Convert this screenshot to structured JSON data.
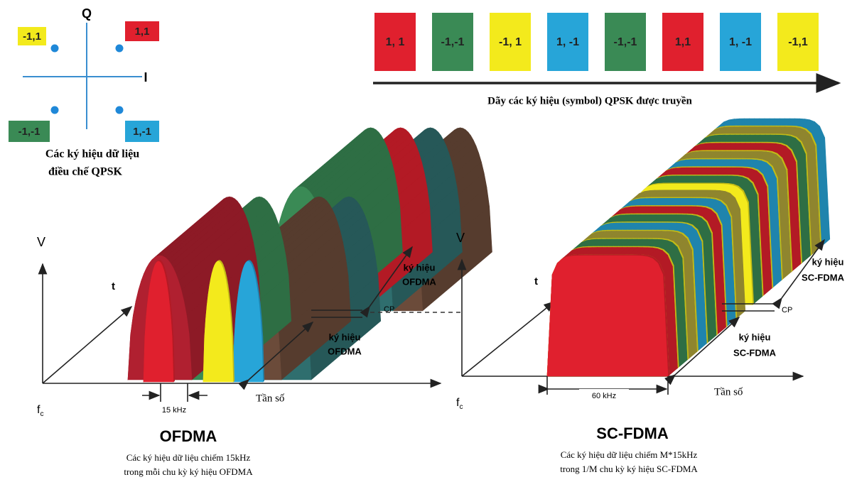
{
  "constellation": {
    "q_axis": "Q",
    "i_axis": "I",
    "points": [
      {
        "label": "-1,1",
        "color": "#f3ea1c"
      },
      {
        "label": "1,1",
        "color": "#e0202e"
      },
      {
        "label": "-1,-1",
        "color": "#3a8a55"
      },
      {
        "label": "1,-1",
        "color": "#27a5d8"
      }
    ],
    "caption": [
      "Các ký hiệu dữ liệu",
      "điều chế QPSK"
    ]
  },
  "sequence": {
    "symbols": [
      {
        "label": "1, 1",
        "color": "#e0202e"
      },
      {
        "label": "-1,-1",
        "color": "#3a8a55"
      },
      {
        "label": "-1, 1",
        "color": "#f3ea1c"
      },
      {
        "label": "1, -1",
        "color": "#27a5d8"
      },
      {
        "label": "-1,-1",
        "color": "#3a8a55"
      },
      {
        "label": "1,1",
        "color": "#e0202e"
      },
      {
        "label": "1, -1",
        "color": "#27a5d8"
      },
      {
        "label": "-1,1",
        "color": "#f3ea1c"
      }
    ],
    "caption": "Dãy các ký hiệu (symbol) QPSK được truyền"
  },
  "ofdma": {
    "v_axis": "V",
    "t_axis": "t",
    "f_axis": "f",
    "f_axis_sub": "c",
    "symbol_labels": [
      [
        "ký hiệu",
        "OFDMA"
      ],
      [
        "ký hiệu",
        "OFDMA"
      ]
    ],
    "cp": "CP",
    "freq_axis": "Tần số",
    "spacing": "15 kHz",
    "title": "OFDMA",
    "caption": [
      "Các ký hiệu dữ liệu chiếm 15kHz",
      "trong mỗi chu kỳ ký hiệu OFDMA"
    ]
  },
  "scfdma": {
    "v_axis": "V",
    "t_axis": "t",
    "f_axis": "f",
    "f_axis_sub": "c",
    "symbol_labels": [
      [
        "ký hiệu",
        "SC-FDMA"
      ],
      [
        "ký hiệu",
        "SC-FDMA"
      ]
    ],
    "cp": "CP",
    "freq_axis": "Tần số",
    "spacing": "60 kHz",
    "title": "SC-FDMA",
    "caption": [
      "Các ký hiệu dữ liệu chiếm M*15kHz",
      "trong 1/M chu kỳ ký hiệu SC-FDMA"
    ]
  }
}
